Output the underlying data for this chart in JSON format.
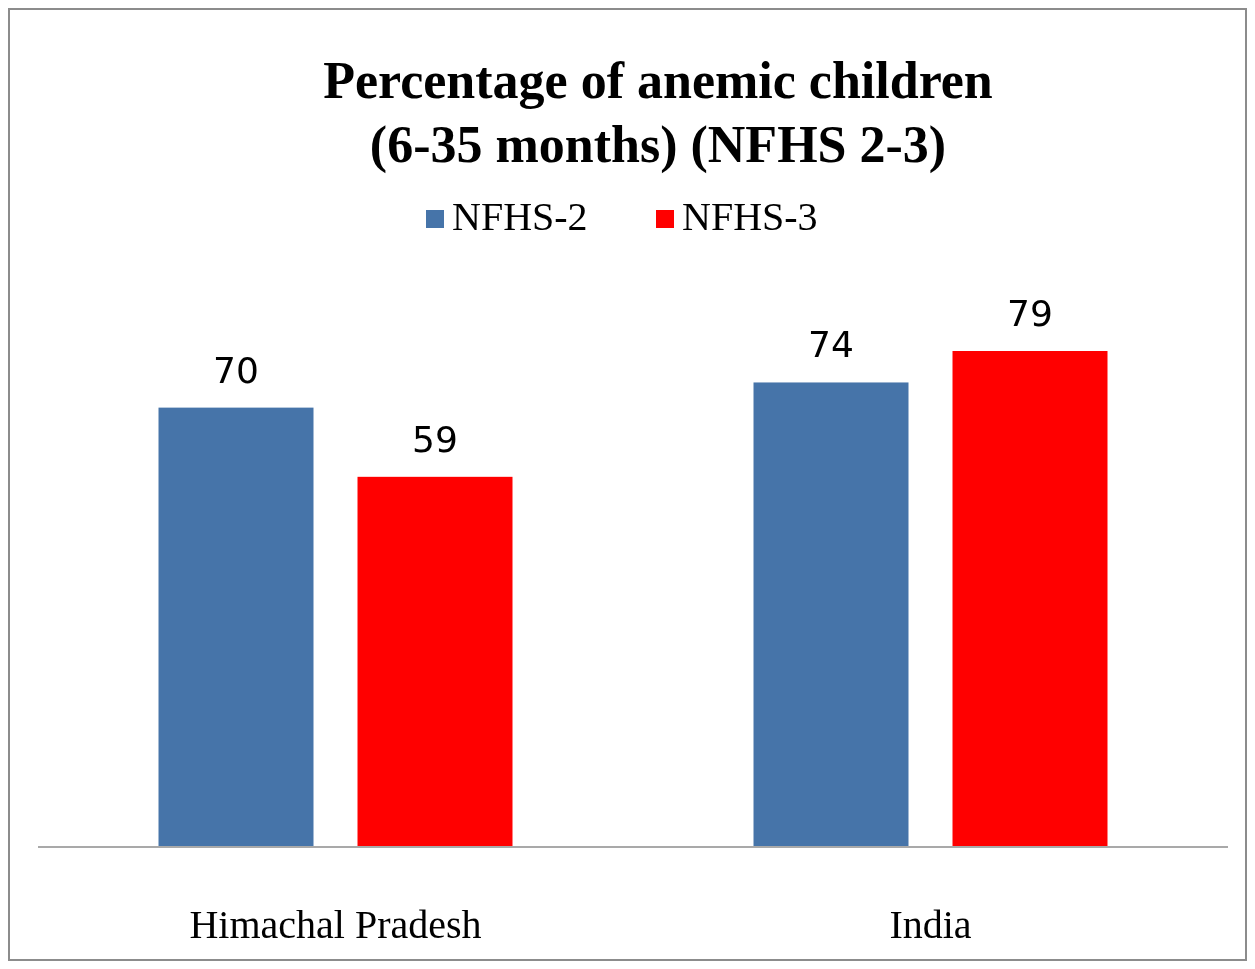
{
  "chart_data": {
    "type": "bar",
    "title": "Percentage of anemic children\n(6-35 months) (NFHS 2-3)",
    "categories": [
      "Himachal Pradesh",
      "India"
    ],
    "series": [
      {
        "name": "NFHS-2",
        "color": "#4674a9",
        "values": [
          70,
          74
        ]
      },
      {
        "name": "NFHS-3",
        "color": "#ff0000",
        "values": [
          59,
          79
        ]
      }
    ],
    "data_labels": true,
    "legend": "top",
    "grid": false
  }
}
